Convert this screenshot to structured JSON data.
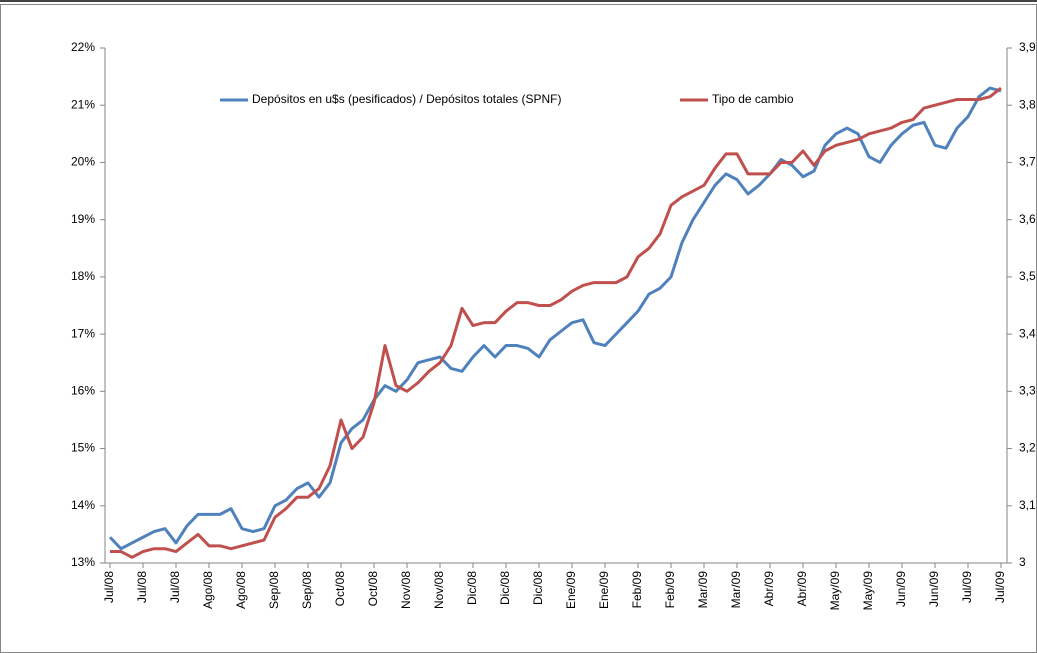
{
  "chart_data": {
    "type": "line",
    "categories": [
      "Jul/08",
      null,
      null,
      "Jul/08",
      null,
      null,
      "Jul/08",
      null,
      null,
      "Ago/08",
      null,
      null,
      "Ago/08",
      null,
      null,
      "Sep/08",
      null,
      null,
      "Sep/08",
      null,
      null,
      "Oct/08",
      null,
      null,
      "Oct/08",
      null,
      null,
      "Nov/08",
      null,
      null,
      "Nov/08",
      null,
      null,
      "Dic/08",
      null,
      null,
      "Dic/08",
      null,
      null,
      "Dic/08",
      null,
      null,
      "Ene/09",
      null,
      null,
      "Ene/09",
      null,
      null,
      "Feb/09",
      null,
      null,
      "Feb/09",
      null,
      null,
      "Mar/09",
      null,
      null,
      "Mar/09",
      null,
      null,
      "Abr/09",
      null,
      null,
      "Abr/09",
      null,
      null,
      "May/09",
      null,
      null,
      "May/09",
      null,
      null,
      "Jun/09",
      null,
      null,
      "Jun/09",
      null,
      null,
      "Jul/09",
      null,
      null,
      "Jul/09"
    ],
    "series": [
      {
        "name": "Depósitos en u$s (pesificados) / Depósitos totales (SPNF)",
        "color": "#4f81bd",
        "values": [
          13.45,
          13.25,
          13.35,
          13.45,
          13.55,
          13.6,
          13.35,
          13.65,
          13.85,
          13.85,
          13.85,
          13.95,
          13.6,
          13.55,
          13.6,
          14.0,
          14.1,
          14.3,
          14.4,
          14.15,
          14.4,
          15.1,
          15.35,
          15.5,
          15.85,
          16.1,
          16.0,
          16.2,
          16.5,
          16.55,
          16.6,
          16.4,
          16.35,
          16.6,
          16.8,
          16.6,
          16.8,
          16.8,
          16.75,
          16.6,
          16.9,
          17.05,
          17.2,
          17.25,
          16.85,
          16.8,
          17.0,
          17.2,
          17.4,
          17.7,
          17.8,
          18.0,
          18.6,
          19.0,
          19.3,
          19.6,
          19.8,
          19.7,
          19.45,
          19.6,
          19.8,
          20.05,
          19.95,
          19.75,
          19.85,
          20.3,
          20.5,
          20.6,
          20.5,
          20.1,
          20.0,
          20.3,
          20.5,
          20.65,
          20.7,
          20.3,
          20.25,
          20.6,
          20.8,
          21.15,
          21.3,
          21.25
        ]
      },
      {
        "name": "Tipo de cambio",
        "color": "#c0504d",
        "axis": "y2",
        "values": [
          3.02,
          3.02,
          3.01,
          3.02,
          3.025,
          3.025,
          3.02,
          3.035,
          3.05,
          3.03,
          3.03,
          3.025,
          3.03,
          3.035,
          3.04,
          3.08,
          3.095,
          3.115,
          3.115,
          3.13,
          3.17,
          3.25,
          3.2,
          3.22,
          3.28,
          3.38,
          3.31,
          3.3,
          3.315,
          3.335,
          3.35,
          3.38,
          3.445,
          3.415,
          3.42,
          3.42,
          3.44,
          3.455,
          3.455,
          3.45,
          3.45,
          3.46,
          3.475,
          3.485,
          3.49,
          3.49,
          3.49,
          3.5,
          3.535,
          3.55,
          3.575,
          3.625,
          3.64,
          3.65,
          3.66,
          3.69,
          3.715,
          3.715,
          3.68,
          3.68,
          3.68,
          3.7,
          3.7,
          3.72,
          3.695,
          3.72,
          3.73,
          3.735,
          3.74,
          3.75,
          3.755,
          3.76,
          3.77,
          3.775,
          3.795,
          3.8,
          3.805,
          3.81,
          3.81,
          3.81,
          3.815,
          3.83
        ]
      }
    ],
    "ylim": [
      13,
      22
    ],
    "yticks": [
      {
        "value": 13,
        "label": "13%"
      },
      {
        "value": 14,
        "label": "14%"
      },
      {
        "value": 15,
        "label": "15%"
      },
      {
        "value": 16,
        "label": "16%"
      },
      {
        "value": 17,
        "label": "17%"
      },
      {
        "value": 18,
        "label": "18%"
      },
      {
        "value": 19,
        "label": "19%"
      },
      {
        "value": 20,
        "label": "20%"
      },
      {
        "value": 21,
        "label": "21%"
      },
      {
        "value": 22,
        "label": "22%"
      }
    ],
    "y2lim": [
      3,
      3.9
    ],
    "y2ticks": [
      3,
      {
        "value": 3.1,
        "label": "3,1"
      },
      {
        "value": 3.2,
        "label": "3,2"
      },
      {
        "value": 3.3,
        "label": "3,3"
      },
      {
        "value": 3.4,
        "label": "3,4"
      },
      {
        "value": 3.5,
        "label": "3,5"
      },
      {
        "value": 3.6,
        "label": "3,6"
      },
      {
        "value": 3.7,
        "label": "3,7"
      },
      {
        "value": 3.8,
        "label": "3,8"
      },
      {
        "value": 3.9,
        "label": "3,9"
      }
    ],
    "grid": false,
    "legend": "top"
  }
}
